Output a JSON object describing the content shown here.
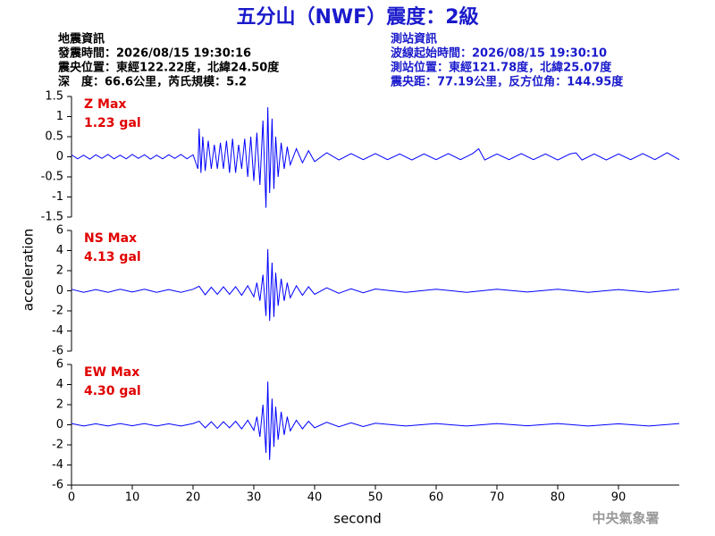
{
  "title": "五分山（NWF）震度：2級",
  "info_left": [
    "地震資訊",
    "發震時間：2026/08/15 19:30:16",
    "震央位置：東經122.22度，北緯24.50度",
    "深　度：66.6公里，芮氏規模：5.2"
  ],
  "info_right": [
    "測站資訊",
    "波線起始時間：2026/08/15 19:30:10",
    "測站位置：東經121.78度，北緯25.07度",
    "震央距：77.19公里，反方位角：144.95度"
  ],
  "y_label": "acceleration",
  "x_label": "second",
  "footer": "中央氣象署",
  "chart_data": [
    {
      "type": "line",
      "annotations": [
        "Z Max",
        "1.23 gal"
      ],
      "color": "#0000ff",
      "annotation_color": "#e00000",
      "xlim": [
        0,
        100
      ],
      "ylim": [
        -1.5,
        1.5
      ],
      "yticks": [
        -1.5,
        -1,
        -0.5,
        0,
        0.5,
        1,
        1.5
      ],
      "x": [
        0,
        1,
        2,
        3,
        4,
        5,
        6,
        7,
        8,
        9,
        10,
        11,
        12,
        13,
        14,
        15,
        16,
        17,
        18,
        19,
        20,
        20.8,
        21,
        21.3,
        21.6,
        22,
        22.5,
        23,
        23.5,
        24,
        24.5,
        25,
        25.5,
        26,
        26.5,
        27,
        27.5,
        28,
        28.5,
        29,
        29.5,
        30,
        30.5,
        31,
        31.5,
        32,
        32.3,
        32.6,
        33,
        33.3,
        33.6,
        34,
        34.5,
        35,
        35.5,
        36,
        37,
        38,
        39,
        40,
        42,
        44,
        46,
        48,
        50,
        52,
        54,
        56,
        58,
        60,
        62,
        64,
        66,
        67,
        68,
        70,
        72,
        74,
        76,
        78,
        80,
        82,
        83,
        84,
        86,
        88,
        90,
        92,
        94,
        96,
        98,
        100
      ],
      "values": [
        0.05,
        -0.05,
        0.04,
        -0.06,
        0.05,
        -0.04,
        0.06,
        -0.05,
        0.04,
        -0.05,
        0.06,
        -0.04,
        0.05,
        -0.06,
        0.04,
        -0.05,
        0.05,
        -0.04,
        0.06,
        -0.05,
        0.05,
        -0.3,
        0.7,
        -0.4,
        0.5,
        -0.35,
        0.4,
        -0.3,
        0.3,
        -0.3,
        0.35,
        -0.3,
        0.4,
        -0.4,
        0.45,
        -0.4,
        0.3,
        -0.3,
        0.45,
        -0.5,
        0.5,
        -0.6,
        0.6,
        -0.7,
        0.9,
        -1.27,
        1.23,
        -0.9,
        0.95,
        -0.8,
        0.5,
        -0.5,
        0.35,
        -0.3,
        0.25,
        -0.2,
        0.2,
        -0.15,
        0.15,
        -0.12,
        0.1,
        -0.08,
        0.08,
        -0.07,
        0.08,
        -0.07,
        0.07,
        -0.08,
        0.07,
        -0.07,
        0.08,
        -0.07,
        0.08,
        0.2,
        -0.08,
        0.07,
        -0.07,
        0.08,
        -0.07,
        0.07,
        -0.08,
        0.07,
        0.1,
        -0.08,
        0.07,
        -0.08,
        0.07,
        -0.07,
        0.08,
        -0.07,
        0.1,
        -0.07
      ]
    },
    {
      "type": "line",
      "annotations": [
        "NS Max",
        "4.13 gal"
      ],
      "color": "#0000ff",
      "annotation_color": "#e00000",
      "xlim": [
        0,
        100
      ],
      "ylim": [
        -6,
        6
      ],
      "yticks": [
        -6,
        -4,
        -2,
        0,
        2,
        4,
        6
      ],
      "x": [
        0,
        2,
        4,
        6,
        8,
        10,
        12,
        14,
        16,
        18,
        20,
        21,
        22,
        23,
        24,
        25,
        26,
        27,
        28,
        29,
        30,
        30.5,
        31,
        31.5,
        32,
        32.3,
        32.6,
        33,
        33.3,
        33.6,
        34,
        34.5,
        35,
        35.5,
        36,
        37,
        38,
        39,
        40,
        42,
        44,
        46,
        48,
        50,
        55,
        60,
        65,
        70,
        75,
        80,
        85,
        90,
        95,
        100
      ],
      "values": [
        0.15,
        -0.15,
        0.12,
        -0.15,
        0.15,
        -0.12,
        0.15,
        -0.15,
        0.12,
        -0.15,
        0.15,
        0.45,
        -0.4,
        0.35,
        -0.35,
        0.4,
        -0.35,
        0.4,
        -0.45,
        0.5,
        -0.6,
        0.8,
        -1.0,
        1.6,
        -2.5,
        4.13,
        -3.0,
        2.8,
        -2.6,
        1.8,
        -1.5,
        1.2,
        -1.0,
        0.8,
        -0.7,
        0.5,
        -0.45,
        0.4,
        -0.35,
        0.3,
        -0.25,
        0.2,
        -0.2,
        0.18,
        -0.15,
        0.15,
        -0.15,
        0.15,
        -0.12,
        0.15,
        -0.15,
        0.12,
        -0.15,
        0.15
      ]
    },
    {
      "type": "line",
      "annotations": [
        "EW Max",
        "4.30 gal"
      ],
      "color": "#0000ff",
      "annotation_color": "#e00000",
      "xlim": [
        0,
        100
      ],
      "ylim": [
        -6,
        6
      ],
      "yticks": [
        -6,
        -4,
        -2,
        0,
        2,
        4,
        6
      ],
      "xticks": [
        0,
        10,
        20,
        30,
        40,
        50,
        60,
        70,
        80,
        90
      ],
      "x": [
        0,
        2,
        4,
        6,
        8,
        10,
        12,
        14,
        16,
        18,
        20,
        21,
        22,
        23,
        24,
        25,
        26,
        27,
        28,
        29,
        30,
        30.5,
        31,
        31.5,
        32,
        32.3,
        32.6,
        33,
        33.3,
        33.6,
        34,
        34.5,
        35,
        35.5,
        36,
        37,
        38,
        39,
        40,
        42,
        44,
        46,
        48,
        50,
        55,
        60,
        65,
        70,
        75,
        80,
        85,
        90,
        95,
        100
      ],
      "values": [
        0.12,
        -0.12,
        0.1,
        -0.12,
        0.12,
        -0.1,
        0.12,
        -0.12,
        0.1,
        -0.12,
        0.12,
        0.35,
        -0.3,
        0.3,
        -0.35,
        0.3,
        -0.3,
        0.35,
        -0.4,
        0.45,
        -0.55,
        0.8,
        -1.2,
        2.0,
        -2.8,
        4.3,
        -3.5,
        2.6,
        -2.2,
        1.8,
        -1.5,
        1.3,
        -1.0,
        0.8,
        -0.6,
        0.45,
        -0.4,
        0.35,
        -0.3,
        0.25,
        -0.2,
        0.2,
        -0.18,
        0.15,
        -0.12,
        0.12,
        -0.12,
        0.12,
        -0.1,
        0.12,
        -0.12,
        0.1,
        -0.12,
        0.12
      ]
    }
  ]
}
